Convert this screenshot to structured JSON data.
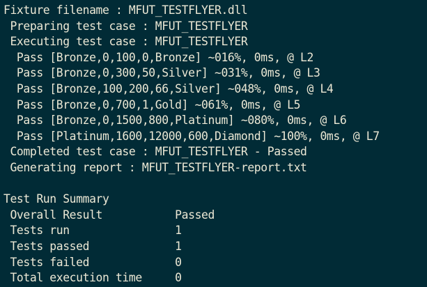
{
  "terminal": {
    "colors": {
      "background": "#012b36",
      "foreground": "#ece8d5"
    },
    "lines": [
      "Fixture filename : MFUT_TESTFLYER.dll",
      " Preparing test case : MFUT_TESTFLYER",
      " Executing test case : MFUT_TESTFLYER",
      "  Pass [Bronze,0,100,0,Bronze] ~016%, 0ms, @ L2",
      "  Pass [Bronze,0,300,50,Silver] ~031%, 0ms, @ L3",
      "  Pass [Bronze,100,200,66,Silver] ~048%, 0ms, @ L4",
      "  Pass [Bronze,0,700,1,Gold] ~061%, 0ms, @ L5",
      "  Pass [Bronze,0,1500,800,Platinum] ~080%, 0ms, @ L6",
      "  Pass [Platinum,1600,12000,600,Diamond] ~100%, 0ms, @ L7",
      " Completed test case : MFUT_TESTFLYER - Passed",
      " Generating report : MFUT_TESTFLYER-report.txt",
      "",
      "Test Run Summary",
      " Overall Result           Passed",
      " Tests run                1",
      " Tests passed             1",
      " Tests failed             0",
      " Total execution time     0"
    ]
  },
  "test_run": {
    "fixture_filename": "MFUT_TESTFLYER.dll",
    "test_case": "MFUT_TESTFLYER",
    "report_file": "MFUT_TESTFLYER-report.txt",
    "results": [
      {
        "status": "Pass",
        "params": "Bronze,0,100,0,Bronze",
        "progress": "~016%",
        "time": "0ms",
        "location": "L2"
      },
      {
        "status": "Pass",
        "params": "Bronze,0,300,50,Silver",
        "progress": "~031%",
        "time": "0ms",
        "location": "L3"
      },
      {
        "status": "Pass",
        "params": "Bronze,100,200,66,Silver",
        "progress": "~048%",
        "time": "0ms",
        "location": "L4"
      },
      {
        "status": "Pass",
        "params": "Bronze,0,700,1,Gold",
        "progress": "~061%",
        "time": "0ms",
        "location": "L5"
      },
      {
        "status": "Pass",
        "params": "Bronze,0,1500,800,Platinum",
        "progress": "~080%",
        "time": "0ms",
        "location": "L6"
      },
      {
        "status": "Pass",
        "params": "Platinum,1600,12000,600,Diamond",
        "progress": "~100%",
        "time": "0ms",
        "location": "L7"
      }
    ],
    "completed_status": "Passed"
  },
  "summary": {
    "title": "Test Run Summary",
    "overall_result": "Passed",
    "tests_run": "1",
    "tests_passed": "1",
    "tests_failed": "0",
    "total_execution_time": "0"
  }
}
